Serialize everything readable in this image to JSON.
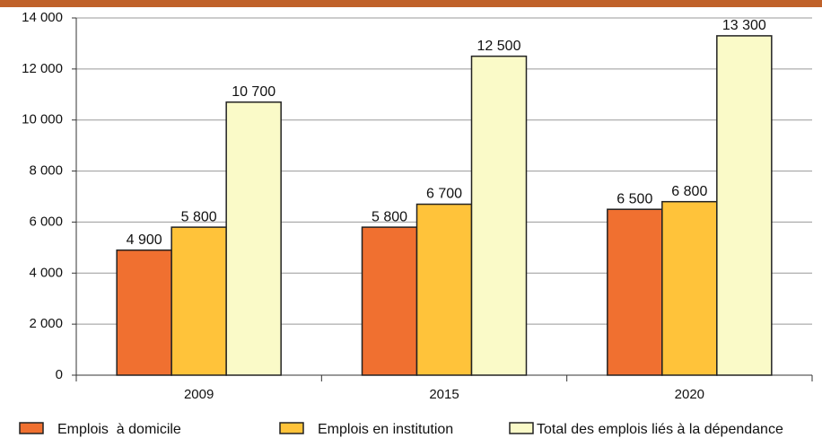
{
  "chart_data": {
    "type": "bar",
    "categories": [
      "2009",
      "2015",
      "2020"
    ],
    "series": [
      {
        "name": "Emplois  à domicile",
        "color": "#f07030",
        "values": [
          4900,
          5800,
          6500
        ],
        "value_labels": [
          "4 900",
          "5 800",
          "6 500"
        ]
      },
      {
        "name": "Emplois en institution",
        "color": "#ffc33a",
        "values": [
          5800,
          6700,
          6800
        ],
        "value_labels": [
          "5 800",
          "6 700",
          "6 800"
        ]
      },
      {
        "name": "Total des emplois liés à la dépendance",
        "color": "#fafac8",
        "values": [
          10700,
          12500,
          13300
        ],
        "value_labels": [
          "10 700",
          "12 500",
          "13 300"
        ]
      }
    ],
    "ylim": [
      0,
      14000
    ],
    "yticks": [
      0,
      {
        "value": 2000,
        "label": "2 000"
      },
      {
        "value": 4000,
        "label": "4 000"
      },
      {
        "value": 6000,
        "label": "6 000"
      },
      {
        "value": 8000,
        "label": "8 000"
      },
      {
        "value": 10000,
        "label": "10 000"
      },
      {
        "value": 12000,
        "label": "12 000"
      },
      {
        "value": 14000,
        "label": "14 000"
      }
    ],
    "grid": true,
    "legend": "bottom"
  }
}
